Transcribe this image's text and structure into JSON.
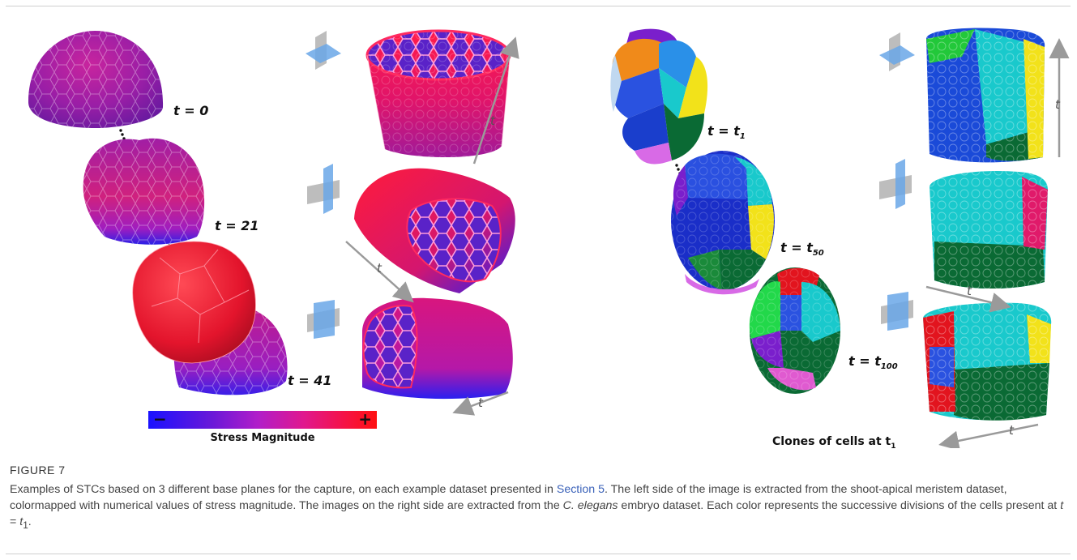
{
  "figure": {
    "left": {
      "time_labels": [
        "t = 0",
        "t = 21",
        "t = 41"
      ],
      "axis_label": "t",
      "colorbar": {
        "minus": "−",
        "plus": "+",
        "title": "Stress Magnitude"
      }
    },
    "right": {
      "time_labels": [
        {
          "base": "t = t",
          "sub": "1"
        },
        {
          "base": "t = t",
          "sub": "50"
        },
        {
          "base": "t = t",
          "sub": "100"
        }
      ],
      "axis_label": "t",
      "clones_label": {
        "base": "Clones of cells at t",
        "sub": "1"
      }
    }
  },
  "caption": {
    "figure_number": "FIGURE 7",
    "s1": "Examples of STCs based on 3 different base planes for the capture, on each example dataset presented in ",
    "link": "Section 5",
    "s2": ". The left side of the image is extracted from the shoot-apical meristem dataset, colormapped with numerical values of stress magnitude. The images on the right side are extracted from the ",
    "species": "C. elegans",
    "s3": " embryo dataset. Each color represents the successive divisions of the cells present at ",
    "eq_t": "t",
    "eq_mid": " = ",
    "eq_t1": "t",
    "eq_sub": "1",
    "end": "."
  }
}
